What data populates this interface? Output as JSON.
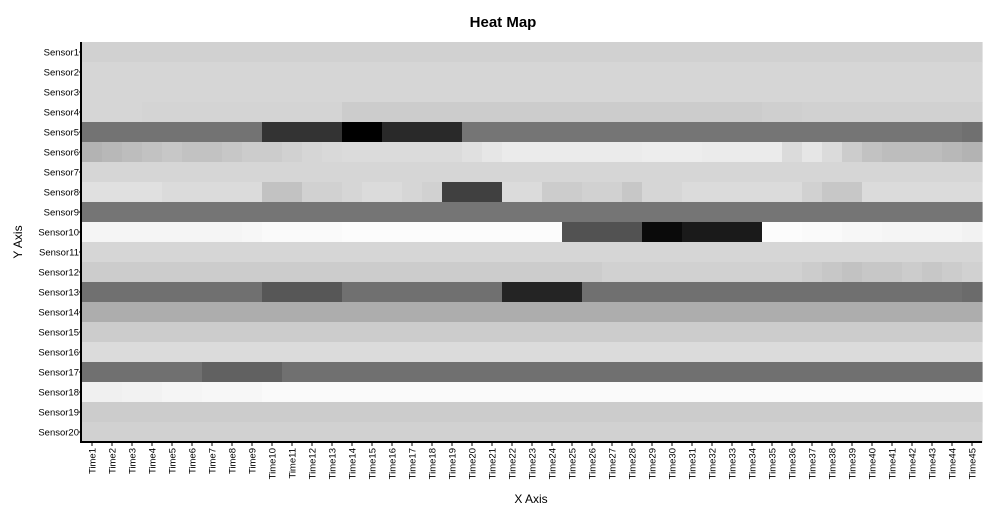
{
  "chart_data": {
    "type": "heatmap",
    "title": "Heat Map",
    "xlabel": "X Axis",
    "ylabel": "Y Axis",
    "colorscale": "grayscale (low = black, high = white)",
    "value_range": [
      0,
      100
    ],
    "legend": "none",
    "grid": false,
    "x_categories": [
      "Time1",
      "Time2",
      "Time3",
      "Time4",
      "Time5",
      "Time6",
      "Time7",
      "Time8",
      "Time9",
      "Time10",
      "Time11",
      "Time12",
      "Time13",
      "Time14",
      "Time15",
      "Time16",
      "Time17",
      "Time18",
      "Time19",
      "Time20",
      "Time21",
      "Time22",
      "Time23",
      "Time24",
      "Time25",
      "Time26",
      "Time27",
      "Time28",
      "Time29",
      "Time30",
      "Time31",
      "Time32",
      "Time33",
      "Time34",
      "Time35",
      "Time36",
      "Time37",
      "Time38",
      "Time39",
      "Time40",
      "Time41",
      "Time42",
      "Time43",
      "Time44",
      "Time45"
    ],
    "y_categories": [
      "Sensor1",
      "Sensor2",
      "Sensor3",
      "Sensor4",
      "Sensor5",
      "Sensor6",
      "Sensor7",
      "Sensor8",
      "Sensor9",
      "Sensor10",
      "Sensor11",
      "Sensor12",
      "Sensor13",
      "Sensor14",
      "Sensor15",
      "Sensor16",
      "Sensor17",
      "Sensor18",
      "Sensor19",
      "Sensor20"
    ],
    "values": [
      [
        82,
        82,
        82,
        82,
        82,
        82,
        82,
        82,
        82,
        82,
        82,
        82,
        82,
        82,
        82,
        82,
        82,
        82,
        82,
        82,
        82,
        82,
        82,
        82,
        82,
        82,
        82,
        82,
        82,
        82,
        82,
        82,
        82,
        82,
        82,
        82,
        82,
        82,
        82,
        82,
        82,
        82,
        82,
        82,
        82
      ],
      [
        84,
        84,
        84,
        84,
        84,
        84,
        84,
        84,
        84,
        84,
        84,
        84,
        84,
        84,
        84,
        84,
        84,
        84,
        84,
        84,
        84,
        84,
        84,
        84,
        84,
        84,
        84,
        84,
        84,
        84,
        84,
        84,
        84,
        84,
        84,
        84,
        84,
        84,
        84,
        84,
        84,
        84,
        84,
        84,
        84
      ],
      [
        84,
        84,
        84,
        84,
        84,
        84,
        84,
        84,
        84,
        84,
        84,
        84,
        84,
        84,
        84,
        84,
        84,
        84,
        84,
        84,
        84,
        84,
        84,
        84,
        84,
        84,
        84,
        84,
        84,
        84,
        84,
        84,
        84,
        84,
        84,
        84,
        84,
        84,
        84,
        84,
        84,
        84,
        84,
        84,
        84
      ],
      [
        84,
        84,
        84,
        83,
        83,
        83,
        83,
        83,
        83,
        83,
        83,
        83,
        83,
        80,
        80,
        80,
        80,
        80,
        80,
        80,
        80,
        80,
        80,
        80,
        80,
        80,
        80,
        80,
        80,
        80,
        80,
        80,
        80,
        80,
        81,
        81,
        82,
        82,
        82,
        82,
        82,
        82,
        82,
        82,
        82
      ],
      [
        45,
        45,
        45,
        45,
        45,
        45,
        45,
        45,
        45,
        20,
        20,
        20,
        20,
        0,
        0,
        16,
        16,
        16,
        16,
        46,
        46,
        46,
        46,
        46,
        46,
        46,
        46,
        46,
        46,
        46,
        46,
        46,
        46,
        46,
        46,
        46,
        46,
        46,
        46,
        46,
        46,
        46,
        46,
        46,
        44
      ],
      [
        70,
        72,
        74,
        76,
        78,
        76,
        76,
        78,
        80,
        80,
        82,
        84,
        85,
        86,
        86,
        86,
        86,
        86,
        86,
        88,
        90,
        92,
        92,
        92,
        92,
        92,
        92,
        92,
        93,
        93,
        93,
        92,
        92,
        92,
        92,
        86,
        90,
        86,
        80,
        76,
        74,
        74,
        74,
        72,
        70
      ],
      [
        84,
        84,
        84,
        84,
        84,
        84,
        84,
        84,
        84,
        84,
        84,
        84,
        84,
        84,
        84,
        84,
        84,
        84,
        84,
        84,
        84,
        84,
        84,
        84,
        84,
        84,
        84,
        84,
        84,
        84,
        84,
        84,
        84,
        84,
        84,
        84,
        84,
        84,
        84,
        84,
        84,
        84,
        84,
        84,
        84
      ],
      [
        88,
        88,
        88,
        88,
        86,
        86,
        86,
        86,
        86,
        76,
        76,
        82,
        82,
        84,
        86,
        86,
        84,
        82,
        25,
        25,
        25,
        86,
        86,
        80,
        80,
        82,
        82,
        78,
        84,
        84,
        86,
        86,
        86,
        86,
        86,
        86,
        82,
        78,
        78,
        86,
        86,
        86,
        86,
        86,
        86
      ],
      [
        46,
        46,
        46,
        46,
        46,
        46,
        46,
        46,
        46,
        46,
        46,
        46,
        46,
        46,
        46,
        46,
        46,
        46,
        46,
        46,
        46,
        46,
        46,
        46,
        46,
        46,
        46,
        46,
        46,
        46,
        46,
        46,
        46,
        46,
        46,
        46,
        46,
        46,
        46,
        46,
        46,
        46,
        46,
        46,
        46
      ],
      [
        96,
        96,
        96,
        96,
        96,
        96,
        96,
        96,
        97,
        98,
        98,
        98,
        98,
        99,
        99,
        99,
        99,
        99,
        99,
        99,
        99,
        99,
        99,
        99,
        32,
        32,
        32,
        32,
        4,
        4,
        10,
        10,
        10,
        10,
        99,
        99,
        98,
        98,
        97,
        97,
        96,
        96,
        96,
        96,
        95
      ],
      [
        84,
        84,
        84,
        84,
        84,
        84,
        84,
        84,
        84,
        84,
        84,
        84,
        84,
        84,
        84,
        84,
        84,
        84,
        84,
        84,
        84,
        84,
        84,
        84,
        84,
        84,
        84,
        84,
        84,
        84,
        84,
        84,
        84,
        84,
        84,
        84,
        84,
        84,
        84,
        84,
        84,
        84,
        84,
        84,
        84
      ],
      [
        80,
        80,
        80,
        80,
        80,
        80,
        80,
        80,
        80,
        80,
        80,
        80,
        80,
        80,
        80,
        80,
        80,
        80,
        80,
        80,
        80,
        80,
        80,
        80,
        80,
        80,
        82,
        82,
        82,
        82,
        82,
        82,
        82,
        82,
        82,
        82,
        80,
        78,
        76,
        78,
        78,
        80,
        78,
        80,
        82
      ],
      [
        44,
        44,
        44,
        44,
        44,
        44,
        44,
        44,
        44,
        34,
        34,
        34,
        34,
        44,
        44,
        44,
        44,
        44,
        44,
        44,
        44,
        14,
        14,
        14,
        14,
        44,
        44,
        44,
        44,
        44,
        44,
        44,
        44,
        44,
        44,
        44,
        44,
        44,
        44,
        44,
        44,
        44,
        44,
        44,
        42
      ],
      [
        68,
        68,
        68,
        68,
        68,
        68,
        68,
        68,
        68,
        68,
        68,
        68,
        68,
        68,
        68,
        68,
        68,
        68,
        68,
        68,
        68,
        68,
        68,
        68,
        68,
        68,
        68,
        68,
        68,
        68,
        68,
        68,
        68,
        68,
        68,
        68,
        68,
        68,
        68,
        68,
        68,
        68,
        68,
        68,
        68
      ],
      [
        80,
        80,
        80,
        80,
        80,
        80,
        80,
        80,
        80,
        80,
        80,
        80,
        80,
        80,
        80,
        80,
        80,
        80,
        80,
        80,
        80,
        80,
        80,
        80,
        80,
        80,
        80,
        80,
        80,
        80,
        80,
        80,
        80,
        80,
        80,
        80,
        80,
        80,
        80,
        80,
        80,
        80,
        80,
        80,
        80
      ],
      [
        86,
        86,
        86,
        86,
        86,
        86,
        86,
        86,
        86,
        86,
        86,
        86,
        86,
        86,
        86,
        86,
        86,
        86,
        86,
        86,
        86,
        86,
        86,
        86,
        86,
        86,
        86,
        86,
        86,
        86,
        86,
        86,
        86,
        86,
        86,
        86,
        86,
        86,
        86,
        86,
        86,
        86,
        86,
        86,
        86
      ],
      [
        44,
        44,
        44,
        44,
        44,
        44,
        38,
        38,
        38,
        38,
        44,
        44,
        44,
        44,
        44,
        44,
        44,
        44,
        44,
        44,
        44,
        44,
        44,
        44,
        44,
        44,
        44,
        44,
        44,
        44,
        44,
        44,
        44,
        44,
        44,
        44,
        44,
        44,
        44,
        44,
        44,
        44,
        44,
        44,
        44
      ],
      [
        94,
        94,
        95,
        95,
        96,
        96,
        97,
        97,
        97,
        98,
        98,
        98,
        98,
        98,
        98,
        98,
        98,
        98,
        98,
        98,
        98,
        98,
        98,
        98,
        98,
        98,
        98,
        98,
        98,
        98,
        98,
        98,
        98,
        98,
        98,
        98,
        98,
        98,
        98,
        98,
        98,
        98,
        98,
        98,
        98
      ],
      [
        80,
        80,
        80,
        80,
        80,
        80,
        80,
        80,
        80,
        80,
        80,
        80,
        80,
        80,
        80,
        80,
        80,
        80,
        80,
        80,
        80,
        80,
        80,
        80,
        80,
        80,
        80,
        80,
        80,
        80,
        80,
        80,
        80,
        80,
        80,
        80,
        80,
        80,
        80,
        80,
        80,
        80,
        80,
        80,
        80
      ],
      [
        82,
        82,
        82,
        82,
        82,
        82,
        82,
        82,
        82,
        82,
        82,
        82,
        82,
        82,
        82,
        82,
        82,
        82,
        82,
        82,
        82,
        82,
        82,
        82,
        82,
        82,
        82,
        82,
        82,
        82,
        82,
        82,
        82,
        82,
        82,
        82,
        82,
        82,
        82,
        82,
        82,
        82,
        82,
        82,
        82
      ]
    ]
  }
}
